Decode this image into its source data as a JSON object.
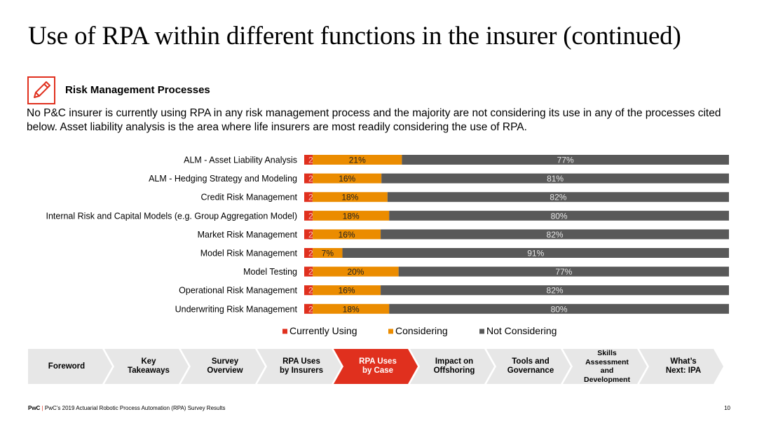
{
  "title": "Use of RPA within different functions in the insurer (continued)",
  "section": {
    "title": "Risk Management Processes",
    "icon": "pencil-icon"
  },
  "intro": "No P&C insurer is currently using RPA in any risk management process and the majority are not considering its use in any of the processes cited below. Asset liability analysis is the area where life insurers are most readily considering the use of RPA.",
  "chart_data": {
    "type": "bar",
    "orientation": "horizontal",
    "stacked": true,
    "title": "",
    "categories": [
      "ALM - Asset Liability Analysis",
      "ALM - Hedging Strategy and Modeling",
      "Credit Risk Management",
      "Internal Risk and Capital Models (e.g. Group Aggregation Model)",
      "Market Risk Management",
      "Model Risk Management",
      "Model Testing",
      "Operational Risk Management",
      "Underwriting Risk Management"
    ],
    "series": [
      {
        "name": "Currently Using",
        "color": "#e0301e",
        "values": [
          2,
          2,
          2,
          2,
          2,
          2,
          2,
          2,
          2
        ]
      },
      {
        "name": "Considering",
        "color": "#eb8c00",
        "values": [
          21,
          16,
          18,
          18,
          16,
          7,
          20,
          16,
          18
        ]
      },
      {
        "name": "Not Considering",
        "color": "#595959",
        "values": [
          77,
          81,
          82,
          80,
          82,
          91,
          77,
          82,
          80
        ]
      }
    ],
    "value_suffix": "%",
    "legend_position": "bottom",
    "grid": false
  },
  "nav": {
    "steps": [
      "Foreword",
      "Key\nTakeaways",
      "Survey\nOverview",
      "RPA Uses\nby Insurers",
      "RPA Uses\nby Case",
      "Impact on\nOffshoring",
      "Tools and\nGovernance",
      "Skills\nAssessment\nand\nDevelopment",
      "What’s\nNext: IPA"
    ],
    "active": 4,
    "active_color": "#e0301e",
    "inactive_color": "#e7e7e7"
  },
  "footer": {
    "brand": "PwC",
    "separator": "|",
    "text": "PwC’s 2019 Actuarial Robotic Process Automation (RPA) Survey Results",
    "page": "10"
  }
}
